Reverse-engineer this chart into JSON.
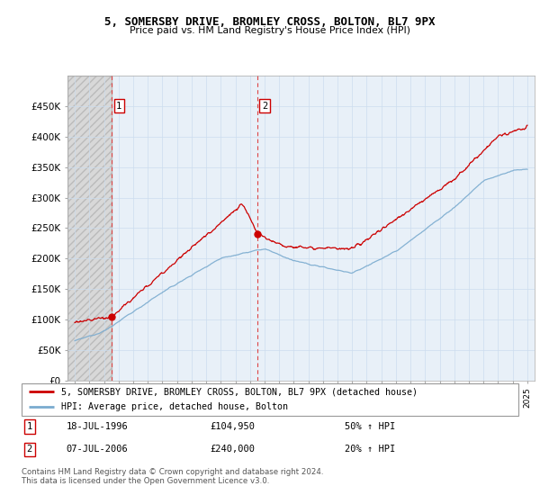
{
  "title": "5, SOMERSBY DRIVE, BROMLEY CROSS, BOLTON, BL7 9PX",
  "subtitle": "Price paid vs. HM Land Registry's House Price Index (HPI)",
  "legend_line1": "5, SOMERSBY DRIVE, BROMLEY CROSS, BOLTON, BL7 9PX (detached house)",
  "legend_line2": "HPI: Average price, detached house, Bolton",
  "transaction1_date": "18-JUL-1996",
  "transaction1_price": 104950,
  "transaction1_label": "50% ↑ HPI",
  "transaction2_date": "07-JUL-2006",
  "transaction2_price": 240000,
  "transaction2_label": "20% ↑ HPI",
  "footer": "Contains HM Land Registry data © Crown copyright and database right 2024.\nThis data is licensed under the Open Government Licence v3.0.",
  "red_line_color": "#cc0000",
  "blue_line_color": "#7aabcf",
  "dashed_line_color": "#dd4444",
  "grid_color": "#ccddee",
  "bg_chart": "#e8f0f8",
  "ylim": [
    0,
    500000
  ],
  "yticks": [
    0,
    50000,
    100000,
    150000,
    200000,
    250000,
    300000,
    350000,
    400000,
    450000
  ],
  "x_start_year": 1994,
  "x_end_year": 2025,
  "transaction1_year": 1996.54,
  "transaction2_year": 2006.52
}
